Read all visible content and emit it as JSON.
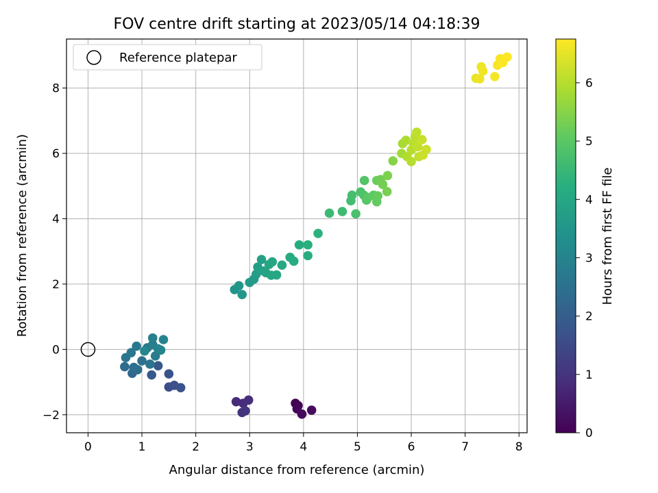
{
  "chart_data": {
    "type": "scatter",
    "title": "FOV centre drift starting at 2023/05/14 04:18:39",
    "xlabel": "Angular distance from reference (arcmin)",
    "ylabel": "Rotation from reference (arcmin)",
    "xlim": [
      -0.4,
      8.15
    ],
    "ylim": [
      -2.55,
      9.5
    ],
    "xticks": [
      0,
      1,
      2,
      3,
      4,
      5,
      6,
      7,
      8
    ],
    "yticks": [
      -2,
      0,
      2,
      4,
      6,
      8
    ],
    "grid": true,
    "legend": {
      "placement": "top-left",
      "entries": [
        "Reference platepar"
      ]
    },
    "reference_point": {
      "x": 0,
      "y": 0,
      "label": "Reference platepar"
    },
    "colorbar": {
      "label": "Hours from first FF file",
      "range": [
        0,
        6.75
      ],
      "ticks": [
        0,
        1,
        2,
        3,
        4,
        5,
        6
      ],
      "colormap": "viridis"
    },
    "points": [
      [
        3.85,
        -1.65,
        0.0
      ],
      [
        3.9,
        -1.72,
        0.05
      ],
      [
        3.88,
        -1.82,
        0.1
      ],
      [
        3.97,
        -1.98,
        0.15
      ],
      [
        4.15,
        -1.86,
        0.22
      ],
      [
        2.75,
        -1.6,
        0.8
      ],
      [
        2.88,
        -1.65,
        0.85
      ],
      [
        2.98,
        -1.55,
        0.9
      ],
      [
        2.86,
        -1.93,
        0.95
      ],
      [
        2.92,
        -1.88,
        1.0
      ],
      [
        1.5,
        -1.15,
        1.6
      ],
      [
        1.6,
        -1.1,
        1.65
      ],
      [
        1.72,
        -1.17,
        1.7
      ],
      [
        1.5,
        -0.75,
        1.75
      ],
      [
        1.3,
        -0.5,
        1.85
      ],
      [
        1.18,
        -0.78,
        1.9
      ],
      [
        0.82,
        -0.73,
        2.3
      ],
      [
        0.68,
        -0.53,
        2.35
      ],
      [
        0.92,
        -0.62,
        2.4
      ],
      [
        0.85,
        -0.55,
        2.45
      ],
      [
        1.0,
        -0.35,
        2.5
      ],
      [
        1.15,
        -0.45,
        2.55
      ],
      [
        0.7,
        -0.25,
        2.6
      ],
      [
        0.8,
        -0.1,
        2.65
      ],
      [
        0.9,
        0.1,
        2.7
      ],
      [
        1.1,
        0.05,
        2.75
      ],
      [
        1.25,
        -0.2,
        2.8
      ],
      [
        1.2,
        0.15,
        2.85
      ],
      [
        1.3,
        0.02,
        2.9
      ],
      [
        1.2,
        0.35,
        2.95
      ],
      [
        1.4,
        0.3,
        3.0
      ],
      [
        1.35,
        -0.02,
        3.05
      ],
      [
        1.05,
        -0.05,
        3.1
      ],
      [
        2.72,
        1.83,
        3.45
      ],
      [
        2.8,
        1.95,
        3.5
      ],
      [
        2.86,
        1.68,
        3.55
      ],
      [
        3.0,
        2.05,
        3.6
      ],
      [
        3.08,
        2.15,
        3.65
      ],
      [
        3.12,
        2.3,
        3.7
      ],
      [
        3.15,
        2.52,
        3.75
      ],
      [
        3.22,
        2.75,
        3.8
      ],
      [
        3.26,
        2.4,
        3.85
      ],
      [
        3.3,
        2.35,
        3.9
      ],
      [
        3.36,
        2.6,
        3.92
      ],
      [
        3.4,
        2.27,
        3.95
      ],
      [
        3.42,
        2.68,
        3.98
      ],
      [
        3.5,
        2.28,
        4.0
      ],
      [
        3.6,
        2.58,
        4.05
      ],
      [
        3.75,
        2.82,
        4.1
      ],
      [
        3.82,
        2.7,
        4.12
      ],
      [
        3.92,
        3.2,
        4.15
      ],
      [
        4.08,
        2.87,
        4.2
      ],
      [
        4.08,
        3.2,
        4.25
      ],
      [
        4.27,
        3.55,
        4.3
      ],
      [
        4.48,
        4.17,
        4.55
      ],
      [
        4.72,
        4.22,
        4.6
      ],
      [
        4.88,
        4.55,
        4.65
      ],
      [
        4.9,
        4.72,
        4.7
      ],
      [
        4.97,
        4.15,
        4.75
      ],
      [
        5.06,
        4.82,
        4.8
      ],
      [
        5.12,
        4.72,
        4.85
      ],
      [
        5.13,
        5.17,
        4.9
      ],
      [
        5.17,
        4.57,
        4.95
      ],
      [
        5.2,
        4.65,
        5.0
      ],
      [
        5.3,
        4.72,
        5.05
      ],
      [
        5.36,
        4.52,
        5.1
      ],
      [
        5.38,
        4.7,
        5.15
      ],
      [
        5.36,
        5.17,
        5.2
      ],
      [
        5.43,
        5.2,
        5.25
      ],
      [
        5.47,
        5.05,
        5.3
      ],
      [
        5.55,
        4.83,
        5.35
      ],
      [
        5.56,
        5.32,
        5.4
      ],
      [
        5.66,
        5.77,
        5.5
      ],
      [
        5.82,
        6.0,
        5.8
      ],
      [
        5.84,
        6.3,
        5.85
      ],
      [
        5.9,
        6.4,
        5.9
      ],
      [
        5.92,
        5.9,
        5.95
      ],
      [
        6.0,
        5.75,
        6.0
      ],
      [
        6.0,
        6.1,
        6.02
      ],
      [
        6.04,
        6.3,
        6.05
      ],
      [
        6.07,
        6.5,
        6.08
      ],
      [
        6.1,
        6.65,
        6.1
      ],
      [
        6.12,
        6.2,
        6.12
      ],
      [
        6.14,
        5.9,
        6.15
      ],
      [
        6.2,
        6.42,
        6.18
      ],
      [
        6.22,
        5.95,
        6.2
      ],
      [
        6.28,
        6.12,
        6.22
      ],
      [
        7.2,
        8.3,
        6.55
      ],
      [
        7.27,
        8.28,
        6.58
      ],
      [
        7.3,
        8.65,
        6.6
      ],
      [
        7.33,
        8.52,
        6.62
      ],
      [
        7.55,
        8.35,
        6.65
      ],
      [
        7.6,
        8.7,
        6.68
      ],
      [
        7.65,
        8.9,
        6.7
      ],
      [
        7.7,
        8.78,
        6.72
      ],
      [
        7.78,
        8.95,
        6.75
      ]
    ]
  }
}
